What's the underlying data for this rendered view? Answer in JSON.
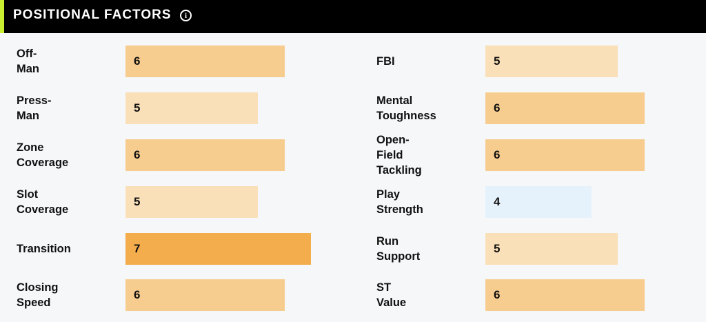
{
  "header": {
    "title": "POSITIONAL FACTORS",
    "info_icon": "info-icon"
  },
  "colors": {
    "7": "#f3ad4d",
    "6": "#f7cd8f",
    "5": "#fae0b8",
    "4": "#e6f2fb",
    "accent": "#c8f030"
  },
  "scale_max": 7,
  "left_factors": [
    {
      "label": "Off-Man",
      "value": "6"
    },
    {
      "label": "Press-Man",
      "value": "5"
    },
    {
      "label": "Zone Coverage",
      "value": "6"
    },
    {
      "label": "Slot Coverage",
      "value": "5"
    },
    {
      "label": "Transition",
      "value": "7"
    },
    {
      "label": "Closing Speed",
      "value": "6"
    }
  ],
  "right_factors": [
    {
      "label": "FBI",
      "value": "5"
    },
    {
      "label": "Mental\nToughness",
      "value": "6"
    },
    {
      "label": "Open-Field\nTackling",
      "value": "6"
    },
    {
      "label": "Play Strength",
      "value": "4"
    },
    {
      "label": "Run Support",
      "value": "5"
    },
    {
      "label": "ST Value",
      "value": "6"
    }
  ]
}
